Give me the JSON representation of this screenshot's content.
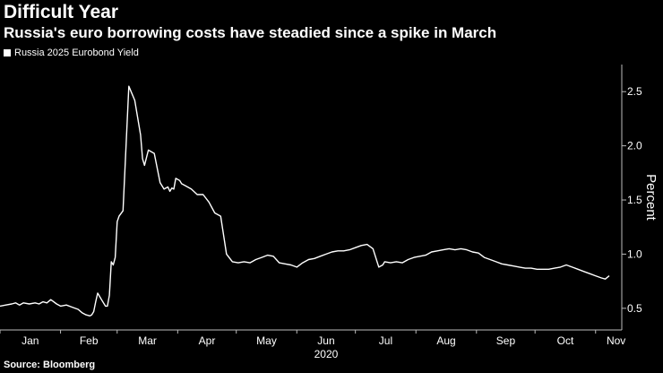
{
  "title": "Difficult Year",
  "subtitle": "Russia's euro borrowing costs have steadied since a spike in March",
  "source": "Source: Bloomberg",
  "chart_data": {
    "type": "line",
    "title": "Difficult Year",
    "subtitle": "Russia's euro borrowing costs have steadied since a spike in March",
    "ylabel": "Percent",
    "xlabel": "2020",
    "ylim": [
      0.3,
      2.75
    ],
    "yticks": [
      0.5,
      1.0,
      1.5,
      2.0,
      2.5
    ],
    "ytick_labels": [
      "0.5",
      "1.0",
      "1.5",
      "2.0",
      "2.5"
    ],
    "xticks": [
      "Jan",
      "Feb",
      "Mar",
      "Apr",
      "May",
      "Jun",
      "Jul",
      "Aug",
      "Sep",
      "Oct",
      "Nov"
    ],
    "legend_position": "top-left",
    "grid": false,
    "line_color": "#ffffff",
    "series": [
      {
        "name": "Russia 2025 Eurobond Yield",
        "x": [
          0,
          3,
          6,
          8,
          10,
          12,
          15,
          18,
          20,
          22,
          24,
          26,
          29,
          31,
          34,
          37,
          40,
          42,
          44,
          46,
          47,
          48,
          49,
          50,
          52,
          54,
          55,
          56,
          57,
          58,
          59,
          60,
          61,
          63,
          66,
          69,
          72,
          73,
          74,
          76,
          79,
          82,
          84,
          86,
          87,
          88,
          89,
          90,
          92,
          93,
          95,
          98,
          101,
          104,
          107,
          110,
          113,
          116,
          119,
          122,
          125,
          128,
          131,
          134,
          137,
          140,
          143,
          146,
          149,
          152,
          155,
          158,
          161,
          164,
          167,
          170,
          173,
          176,
          179,
          182,
          185,
          188,
          191,
          194,
          196,
          197,
          200,
          203,
          206,
          209,
          212,
          215,
          218,
          221,
          224,
          227,
          230,
          233,
          236,
          239,
          242,
          245,
          248,
          251,
          254,
          257,
          260,
          263,
          266,
          269,
          272,
          275,
          278,
          281,
          284,
          287,
          290,
          293,
          296,
          299,
          302,
          305,
          308,
          310,
          312
        ],
        "y": [
          0.52,
          0.53,
          0.54,
          0.55,
          0.53,
          0.55,
          0.54,
          0.55,
          0.54,
          0.56,
          0.55,
          0.58,
          0.54,
          0.52,
          0.53,
          0.51,
          0.49,
          0.46,
          0.44,
          0.43,
          0.44,
          0.47,
          0.56,
          0.64,
          0.58,
          0.52,
          0.52,
          0.62,
          0.93,
          0.9,
          0.97,
          1.3,
          1.35,
          1.4,
          2.55,
          2.42,
          2.1,
          1.88,
          1.82,
          1.96,
          1.93,
          1.66,
          1.6,
          1.62,
          1.58,
          1.61,
          1.6,
          1.7,
          1.68,
          1.65,
          1.63,
          1.6,
          1.55,
          1.55,
          1.48,
          1.38,
          1.35,
          1.0,
          0.93,
          0.92,
          0.93,
          0.92,
          0.95,
          0.97,
          0.99,
          0.98,
          0.92,
          0.91,
          0.9,
          0.88,
          0.92,
          0.95,
          0.96,
          0.98,
          1.0,
          1.02,
          1.03,
          1.03,
          1.04,
          1.06,
          1.08,
          1.09,
          1.05,
          0.88,
          0.9,
          0.93,
          0.92,
          0.93,
          0.92,
          0.95,
          0.97,
          0.98,
          0.99,
          1.02,
          1.03,
          1.04,
          1.05,
          1.04,
          1.05,
          1.04,
          1.02,
          1.01,
          0.97,
          0.95,
          0.93,
          0.91,
          0.9,
          0.89,
          0.88,
          0.87,
          0.87,
          0.86,
          0.86,
          0.86,
          0.87,
          0.88,
          0.9,
          0.88,
          0.86,
          0.84,
          0.82,
          0.8,
          0.78,
          0.77,
          0.8
        ]
      }
    ]
  }
}
